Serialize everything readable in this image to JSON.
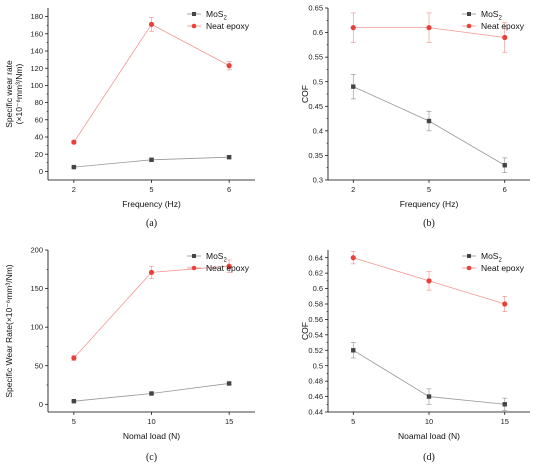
{
  "chart_data": [
    {
      "id": "a",
      "type": "line",
      "caption": "(a)",
      "xlabel": "Frequency (Hz)",
      "ylabel": [
        "Specific wear rate",
        "(×10⁻⁶mm³/Nm)"
      ],
      "categories": [
        "2",
        "5",
        "6"
      ],
      "ylim": [
        -10,
        190
      ],
      "yticks": [
        0,
        20,
        40,
        60,
        80,
        100,
        120,
        140,
        160,
        180
      ],
      "ytick_labels": [
        "0",
        "20",
        "40",
        "60",
        "80",
        "100",
        "120",
        "140",
        "160",
        "180"
      ],
      "legend_position": "top-right",
      "series": [
        {
          "name": "MoS",
          "name_sub": "2",
          "color": "#444444",
          "marker": "square",
          "values": [
            5,
            13.5,
            16.5
          ],
          "errors": [
            0.8,
            1.5,
            1.5
          ]
        },
        {
          "name": "Neat epoxy",
          "name_sub": "",
          "color": "#e8413a",
          "marker": "circle",
          "values": [
            34,
            171,
            123
          ],
          "errors": [
            2,
            8,
            5
          ]
        }
      ]
    },
    {
      "id": "b",
      "type": "line",
      "caption": "(b)",
      "xlabel": "Frequency (Hz)",
      "ylabel": [
        "COF"
      ],
      "categories": [
        "2",
        "5",
        "6"
      ],
      "ylim": [
        0.3,
        0.65
      ],
      "yticks": [
        0.3,
        0.35,
        0.4,
        0.45,
        0.5,
        0.55,
        0.6,
        0.65
      ],
      "ytick_labels": [
        "0.3",
        "0.35",
        "0.4",
        "0.45",
        "0.5",
        "0.55",
        "0.6",
        "0.65"
      ],
      "legend_position": "top-right",
      "series": [
        {
          "name": "MoS",
          "name_sub": "2",
          "color": "#444444",
          "marker": "square",
          "values": [
            0.49,
            0.42,
            0.33
          ],
          "errors": [
            0.025,
            0.02,
            0.015
          ]
        },
        {
          "name": "Neat epoxy",
          "name_sub": "",
          "color": "#e8413a",
          "marker": "circle",
          "values": [
            0.61,
            0.61,
            0.59
          ],
          "errors": [
            0.03,
            0.03,
            0.03
          ]
        }
      ]
    },
    {
      "id": "c",
      "type": "line",
      "caption": "(c)",
      "xlabel": "Nomal load (N)",
      "ylabel": [
        "Specific Wear Rate(×10⁻⁶mm³/Nm)"
      ],
      "categories": [
        "5",
        "10",
        "15"
      ],
      "ylim": [
        -10,
        200
      ],
      "yticks": [
        0,
        50,
        100,
        150,
        200
      ],
      "ytick_labels": [
        "0",
        "50",
        "100",
        "150",
        "200"
      ],
      "legend_position": "top-right",
      "series": [
        {
          "name": "MoS",
          "name_sub": "2",
          "color": "#444444",
          "marker": "square",
          "values": [
            4,
            14,
            27
          ],
          "errors": [
            1,
            1.5,
            1.5
          ]
        },
        {
          "name": "Neat epoxy",
          "name_sub": "",
          "color": "#e8413a",
          "marker": "circle",
          "values": [
            60,
            171,
            179
          ],
          "errors": [
            3,
            8,
            8
          ]
        }
      ]
    },
    {
      "id": "d",
      "type": "line",
      "caption": "(d)",
      "xlabel": "Noamal load (N)",
      "ylabel": [
        "COF"
      ],
      "categories": [
        "5",
        "10",
        "15"
      ],
      "ylim": [
        0.44,
        0.65
      ],
      "yticks": [
        0.44,
        0.46,
        0.48,
        0.5,
        0.52,
        0.54,
        0.56,
        0.58,
        0.6,
        0.62,
        0.64
      ],
      "ytick_labels": [
        "0.44",
        "0.46",
        "0.48",
        "0.5",
        "0.52",
        "0.54",
        "0.56",
        "0.58",
        "0.6",
        "0.62",
        "0.64"
      ],
      "legend_position": "top-right",
      "series": [
        {
          "name": "MoS",
          "name_sub": "2",
          "color": "#444444",
          "marker": "square",
          "values": [
            0.52,
            0.46,
            0.45
          ],
          "errors": [
            0.01,
            0.01,
            0.008
          ]
        },
        {
          "name": "Neat epoxy",
          "name_sub": "",
          "color": "#e8413a",
          "marker": "circle",
          "values": [
            0.64,
            0.61,
            0.58
          ],
          "errors": [
            0.008,
            0.012,
            0.01
          ]
        }
      ]
    }
  ]
}
